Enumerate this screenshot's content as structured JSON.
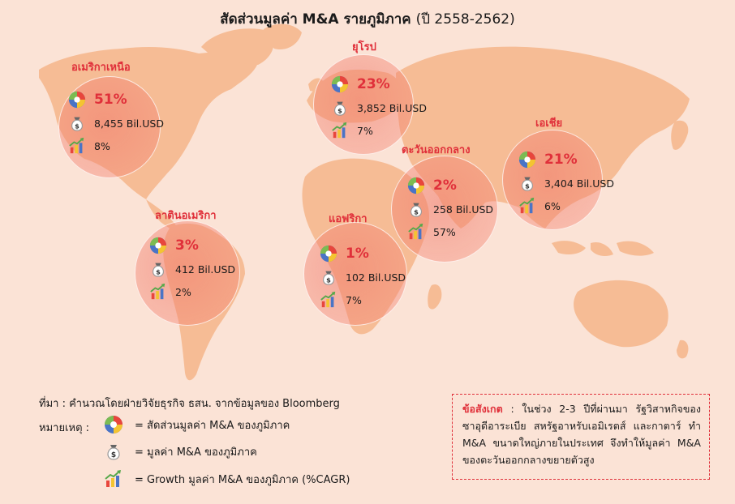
{
  "title": {
    "main": "สัดส่วนมูลค่า M&A รายภูมิภาค",
    "period": "(ปี 2558-2562)"
  },
  "regions": [
    {
      "name": "อเมริกาเหนือ",
      "share": "51%",
      "value": "8,455 Bil.USD",
      "growth": "8%"
    },
    {
      "name": "ยุโรป",
      "share": "23%",
      "value": "3,852 Bil.USD",
      "growth": "7%"
    },
    {
      "name": "เอเชีย",
      "share": "21%",
      "value": "3,404 Bil.USD",
      "growth": "6%"
    },
    {
      "name": "ตะวันออกกลาง",
      "share": "2%",
      "value": "258 Bil.USD",
      "growth": "57%"
    },
    {
      "name": "ลาตินอเมริกา",
      "share": "3%",
      "value": "412 Bil.USD",
      "growth": "2%"
    },
    {
      "name": "แอฟริกา",
      "share": "1%",
      "value": "102 Bil.USD",
      "growth": "7%"
    }
  ],
  "source": "ที่มา : คำนวณโดยฝ่ายวิจัยธุรกิจ ธสน. จากข้อมูลของ Bloomberg",
  "legend": {
    "title": "หมายเหตุ :",
    "items": [
      {
        "icon": "pie-chart-icon",
        "text": "= สัดส่วนมูลค่า M&A ของภูมิภาค"
      },
      {
        "icon": "money-bag-icon",
        "text": "= มูลค่า M&A ของภูมิภาค"
      },
      {
        "icon": "growth-chart-icon",
        "text": "= Growth มูลค่า M&A ของภูมิภาค (%CAGR)"
      }
    ]
  },
  "note": {
    "label": "ข้อสังเกต",
    "text": " : ในช่วง 2-3 ปีที่ผ่านมา รัฐวิสาหกิจของซาอุดีอาระเบีย สหรัฐอาหรับเอมิเรตส์ และกาตาร์ ทำ M&A ขนาดใหญ่ภายในประเทศ จึงทำให้มูลค่า M&A ของตะวันออกกลางขยายตัวสูง"
  },
  "colors": {
    "accent": "#e0303a",
    "land": "#f6b98f",
    "background": "#fbe3d6"
  }
}
